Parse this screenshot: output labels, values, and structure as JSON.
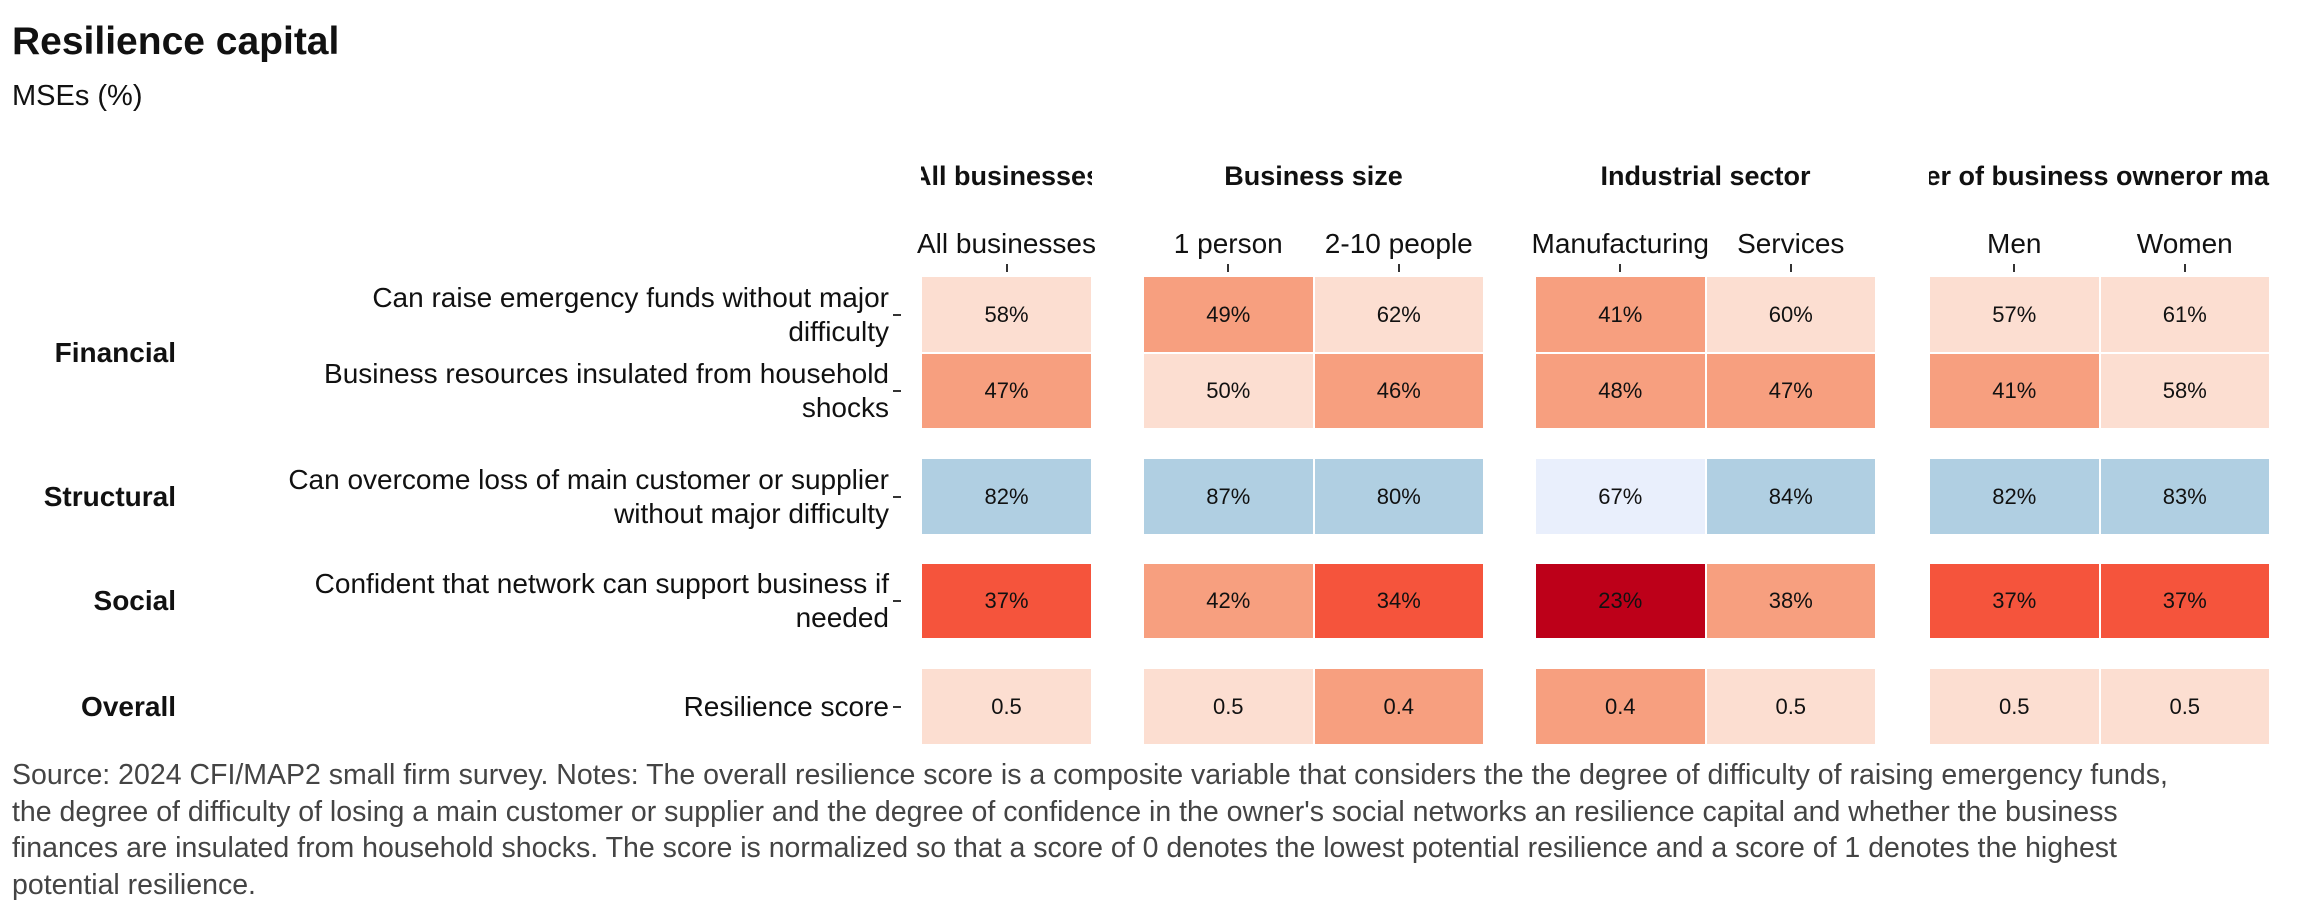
{
  "chart_data": {
    "type": "heatmap",
    "title": "Resilience capital",
    "subtitle": "MSEs (%)",
    "panels": [
      {
        "header": [
          "All businesses"
        ],
        "columns": [
          "All businesses"
        ]
      },
      {
        "header": [
          "Business size"
        ],
        "columns": [
          "1 person",
          "2-10 people"
        ]
      },
      {
        "header": [
          "Industrial sector"
        ],
        "columns": [
          "Manufacturing",
          "Services"
        ]
      },
      {
        "header": [
          "Gender of business owner",
          "or manager"
        ],
        "columns": [
          "Men",
          "Women"
        ]
      }
    ],
    "groups": [
      {
        "label": "Financial",
        "rows": [
          0,
          1
        ]
      },
      {
        "label": "Structural",
        "rows": [
          2
        ]
      },
      {
        "label": "Social",
        "rows": [
          3
        ]
      },
      {
        "label": "Overall",
        "rows": [
          4
        ]
      }
    ],
    "rows": [
      {
        "label": "Can raise emergency funds without major\ndifficulty",
        "values": [
          "58%",
          "49%",
          "62%",
          "41%",
          "60%",
          "57%",
          "61%"
        ],
        "colors": [
          "#FCDED1",
          "#F79F7F",
          "#FCDED1",
          "#F79F7F",
          "#FCDED1",
          "#FCDED1",
          "#FCDED1"
        ]
      },
      {
        "label": "Business resources insulated from household\nshocks",
        "values": [
          "47%",
          "50%",
          "46%",
          "48%",
          "47%",
          "41%",
          "58%"
        ],
        "colors": [
          "#F79F7F",
          "#FCDED1",
          "#F79F7F",
          "#F79F7F",
          "#F79F7F",
          "#F79F7F",
          "#FCDED1"
        ]
      },
      {
        "label": "Can overcome loss of main customer or supplier\nwithout major difficulty",
        "values": [
          "82%",
          "87%",
          "80%",
          "67%",
          "84%",
          "82%",
          "83%"
        ],
        "colors": [
          "#B0CFE2",
          "#B0CFE2",
          "#B0CFE2",
          "#E9EFFC",
          "#B0CFE2",
          "#B0CFE2",
          "#B0CFE2"
        ]
      },
      {
        "label": "Confident that network can support business if\nneeded",
        "values": [
          "37%",
          "42%",
          "34%",
          "23%",
          "38%",
          "37%",
          "37%"
        ],
        "colors": [
          "#F5543C",
          "#F79F7F",
          "#F5543C",
          "#BD0019",
          "#F79F7F",
          "#F5543C",
          "#F5543C"
        ]
      },
      {
        "label": "Resilience score",
        "values": [
          "0.5",
          "0.5",
          "0.4",
          "0.4",
          "0.5",
          "0.5",
          "0.5"
        ],
        "colors": [
          "#FCDED1",
          "#FCDED1",
          "#F79F7F",
          "#F79F7F",
          "#FCDED1",
          "#FCDED1",
          "#FCDED1"
        ]
      }
    ],
    "caption": "Source: 2024 CFI/MAP2 small firm survey. Notes: The overall resilience score is a composite variable that considers the the degree of difficulty of raising emergency funds, the degree of difficulty of losing a main customer or supplier and the degree of confidence in the owner's social networks an resilience capital and whether the business finances are insulated from household shocks. The score is normalized so that a score of 0 denotes the lowest potential resilience and a score of 1 denotes the highest potential resilience."
  }
}
